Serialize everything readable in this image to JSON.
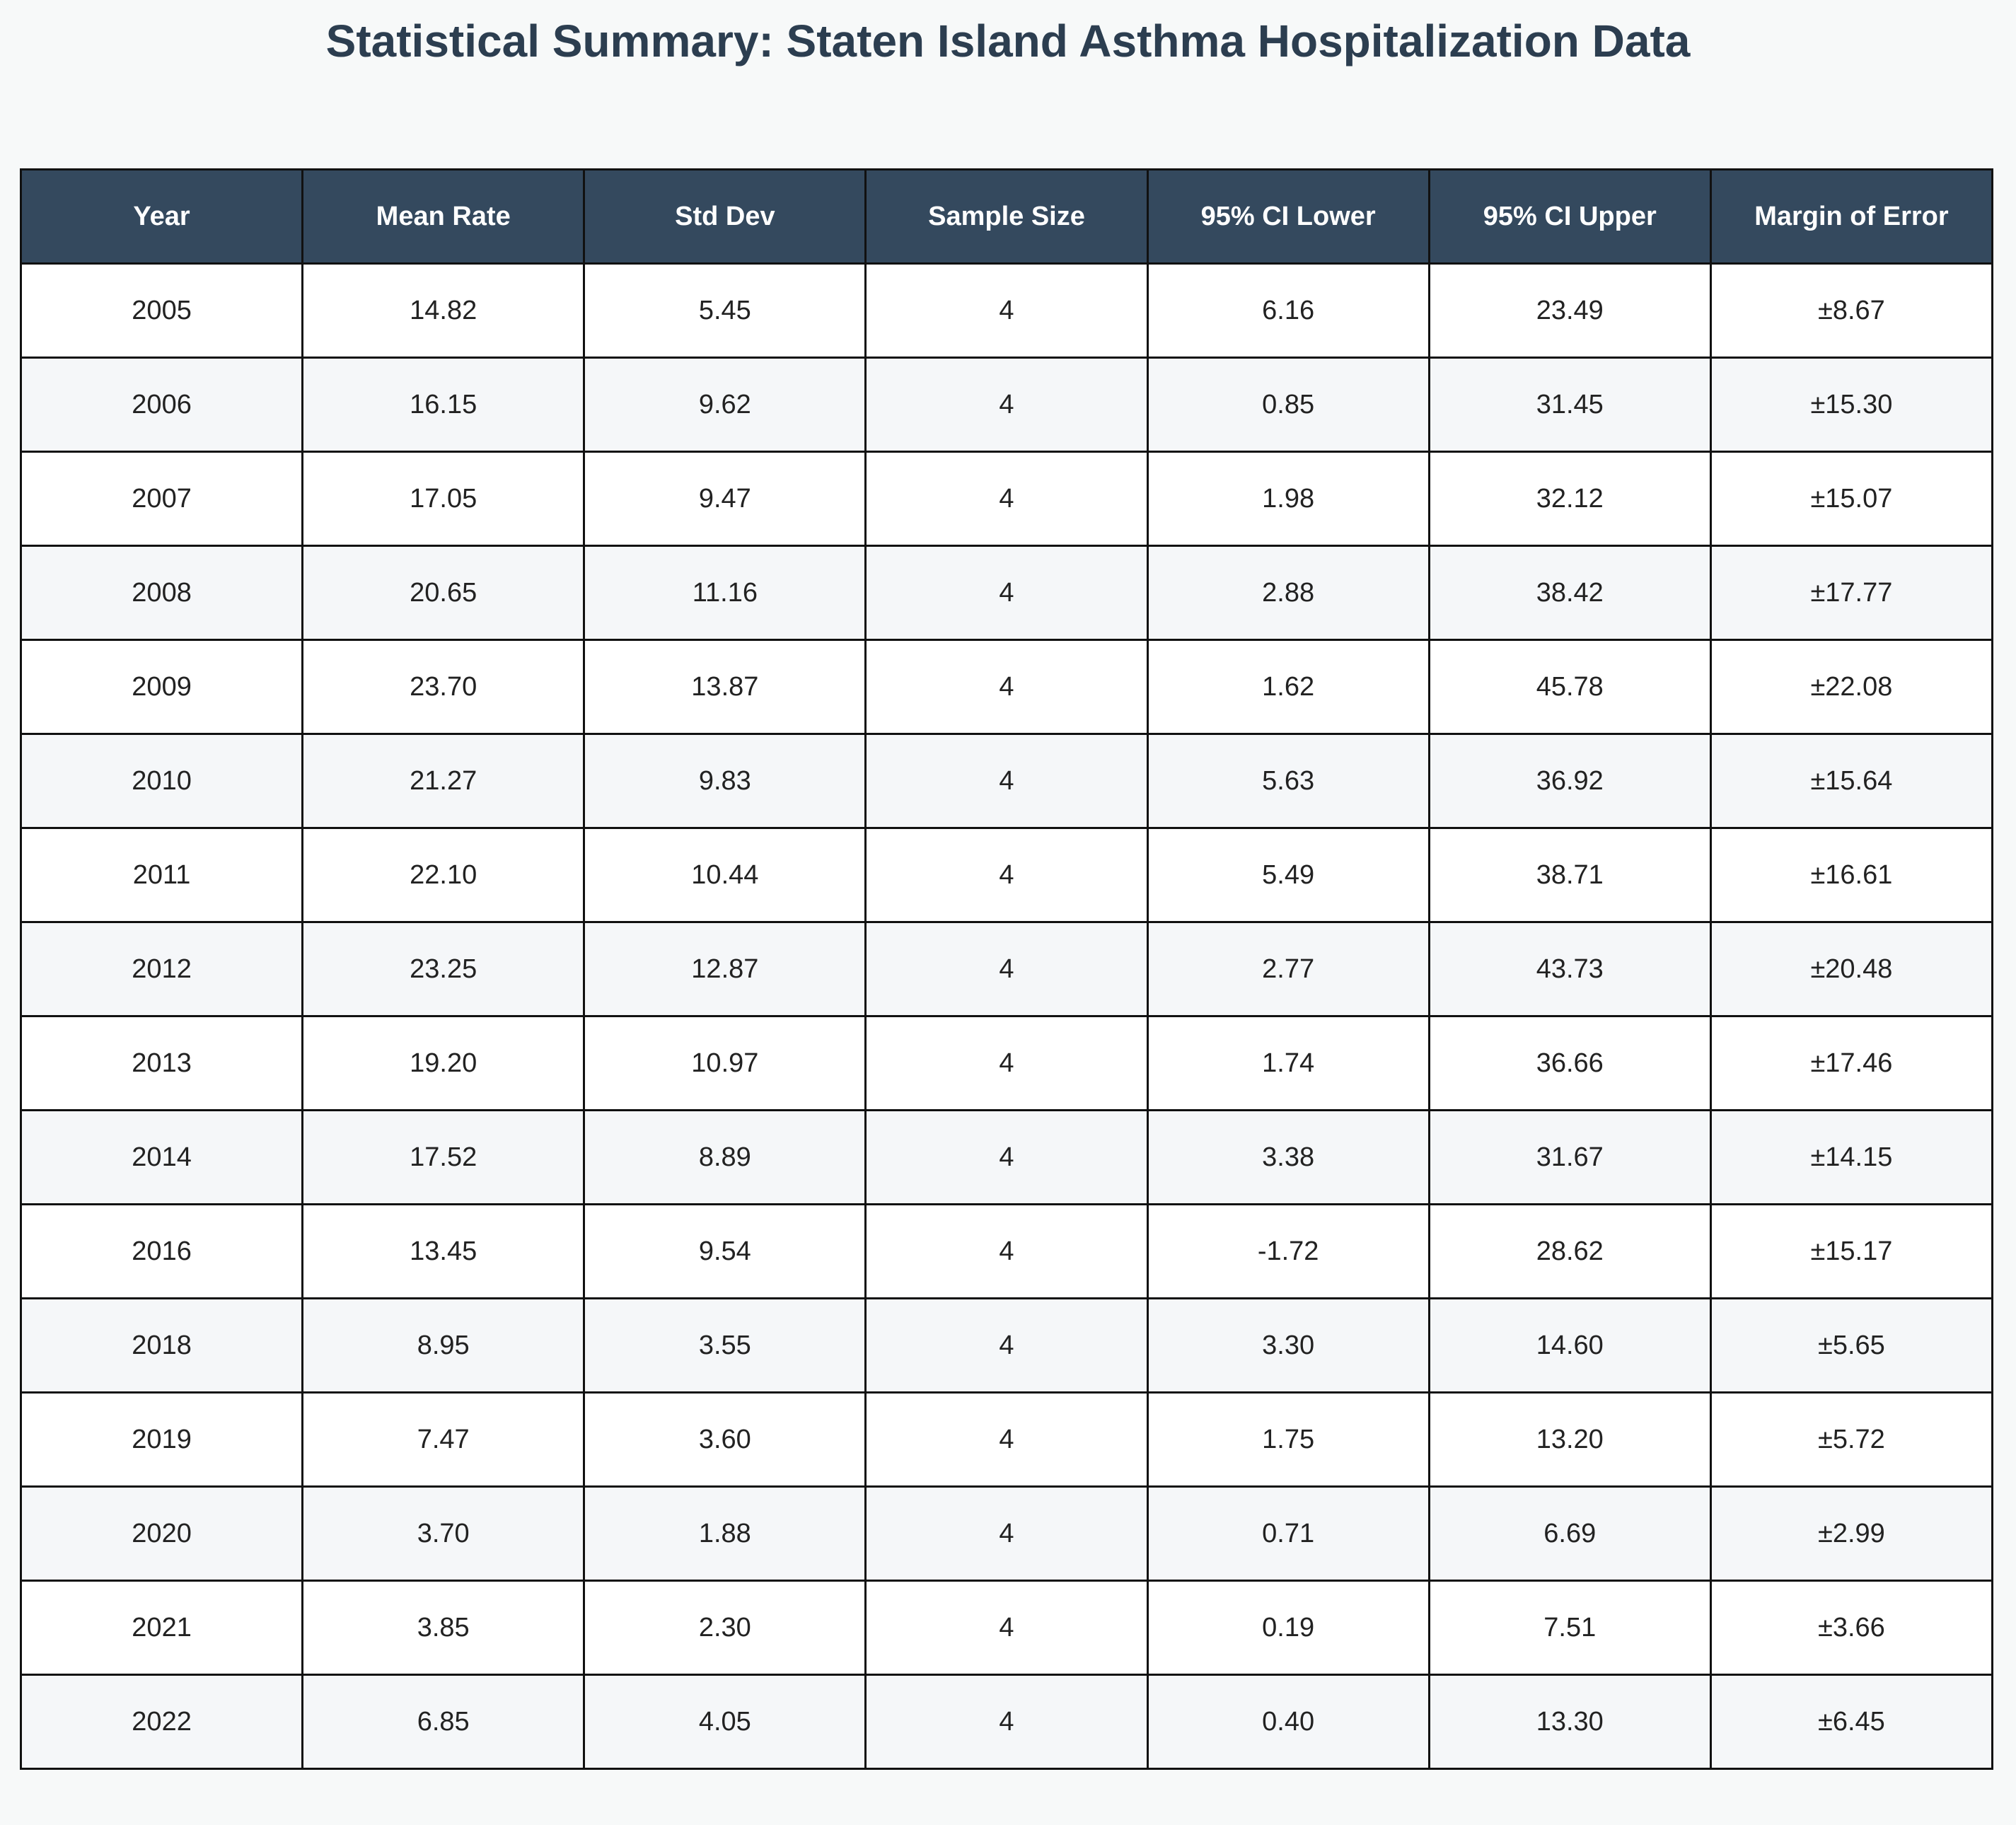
{
  "title": "Statistical Summary: Staten Island Asthma Hospitalization Data",
  "colors": {
    "header_bg": "#34495e",
    "header_text": "#ffffff",
    "title_text": "#2c3e50",
    "row_alt": "#f5f7f9"
  },
  "chart_data": {
    "type": "table",
    "title": "Statistical Summary: Staten Island Asthma Hospitalization Data",
    "columns": [
      "Year",
      "Mean Rate",
      "Std Dev",
      "Sample Size",
      "95% CI Lower",
      "95% CI Upper",
      "Margin of Error"
    ],
    "rows": [
      [
        "2005",
        "14.82",
        "5.45",
        "4",
        "6.16",
        "23.49",
        "±8.67"
      ],
      [
        "2006",
        "16.15",
        "9.62",
        "4",
        "0.85",
        "31.45",
        "±15.30"
      ],
      [
        "2007",
        "17.05",
        "9.47",
        "4",
        "1.98",
        "32.12",
        "±15.07"
      ],
      [
        "2008",
        "20.65",
        "11.16",
        "4",
        "2.88",
        "38.42",
        "±17.77"
      ],
      [
        "2009",
        "23.70",
        "13.87",
        "4",
        "1.62",
        "45.78",
        "±22.08"
      ],
      [
        "2010",
        "21.27",
        "9.83",
        "4",
        "5.63",
        "36.92",
        "±15.64"
      ],
      [
        "2011",
        "22.10",
        "10.44",
        "4",
        "5.49",
        "38.71",
        "±16.61"
      ],
      [
        "2012",
        "23.25",
        "12.87",
        "4",
        "2.77",
        "43.73",
        "±20.48"
      ],
      [
        "2013",
        "19.20",
        "10.97",
        "4",
        "1.74",
        "36.66",
        "±17.46"
      ],
      [
        "2014",
        "17.52",
        "8.89",
        "4",
        "3.38",
        "31.67",
        "±14.15"
      ],
      [
        "2016",
        "13.45",
        "9.54",
        "4",
        "-1.72",
        "28.62",
        "±15.17"
      ],
      [
        "2018",
        "8.95",
        "3.55",
        "4",
        "3.30",
        "14.60",
        "±5.65"
      ],
      [
        "2019",
        "7.47",
        "3.60",
        "4",
        "1.75",
        "13.20",
        "±5.72"
      ],
      [
        "2020",
        "3.70",
        "1.88",
        "4",
        "0.71",
        "6.69",
        "±2.99"
      ],
      [
        "2021",
        "3.85",
        "2.30",
        "4",
        "0.19",
        "7.51",
        "±3.66"
      ],
      [
        "2022",
        "6.85",
        "4.05",
        "4",
        "0.40",
        "13.30",
        "±6.45"
      ]
    ]
  }
}
